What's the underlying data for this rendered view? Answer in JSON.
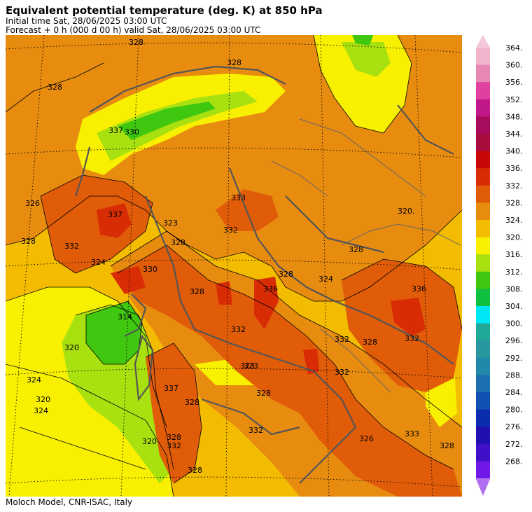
{
  "header": {
    "title": "Equivalent potential temperature (deg. K) at 850 hPa",
    "initial_time": "Initial time  Sat, 28/06/2025  03:00 UTC",
    "forecast": "Forecast  +   0 h  (000 d 00 h)  valid Sat, 28/06/2025 03:00 UTC"
  },
  "footer": {
    "credit": "Moloch Model, CNR-ISAC, Italy"
  },
  "colorbar": {
    "levels": [
      {
        "label": "364.",
        "color": "#f0b4cc"
      },
      {
        "label": "360.",
        "color": "#e888b4"
      },
      {
        "label": "356.",
        "color": "#e040a0"
      },
      {
        "label": "352.",
        "color": "#c01888"
      },
      {
        "label": "348.",
        "color": "#a80c5c"
      },
      {
        "label": "344.",
        "color": "#a80c3c"
      },
      {
        "label": "340.",
        "color": "#c80808"
      },
      {
        "label": "336.",
        "color": "#d82c04"
      },
      {
        "label": "332.",
        "color": "#e05c08"
      },
      {
        "label": "328.",
        "color": "#e88c10"
      },
      {
        "label": "324.",
        "color": "#f4bc00"
      },
      {
        "label": "320.",
        "color": "#f8f000"
      },
      {
        "label": "316.",
        "color": "#a8e010"
      },
      {
        "label": "312.",
        "color": "#40c810"
      },
      {
        "label": "308.",
        "color": "#10c040"
      },
      {
        "label": "304.",
        "color": "#00e8f8"
      },
      {
        "label": "300.",
        "color": "#20a898"
      },
      {
        "label": "296.",
        "color": "#2898a0"
      },
      {
        "label": "292.",
        "color": "#2088a8"
      },
      {
        "label": "288.",
        "color": "#1c70b0"
      },
      {
        "label": "284.",
        "color": "#1050b0"
      },
      {
        "label": "280.",
        "color": "#0c2cb0"
      },
      {
        "label": "276.",
        "color": "#2010b0"
      },
      {
        "label": "272.",
        "color": "#4010c8"
      },
      {
        "label": "268.",
        "color": "#7018e8"
      }
    ],
    "top_arrow_color": "#f4c8dc",
    "bottom_arrow_color": "#b070f0"
  },
  "map": {
    "contour_labels": [
      "328",
      "328",
      "328",
      "337",
      "330",
      "326",
      "328",
      "332",
      "337",
      "323",
      "333",
      "324",
      "328",
      "332",
      "330",
      "323",
      "328",
      "328",
      "336",
      "328",
      "336",
      "320.",
      "328",
      "324",
      "332",
      "314",
      "320",
      "332",
      "332",
      "332",
      "328",
      "323",
      "337",
      "328",
      "328",
      "326",
      "333",
      "332",
      "324",
      "320",
      "324",
      "320",
      "332",
      "328",
      "328"
    ]
  }
}
